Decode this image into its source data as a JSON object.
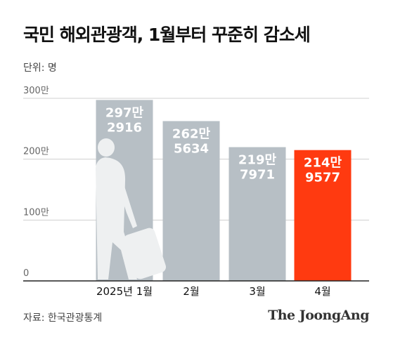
{
  "title": "국민 해외관광객, 1월부터 꾸준히 감소세",
  "unit_label": "단위: 명",
  "source": "자료: 한국관광통계",
  "logo": "The JoongAng",
  "colors": {
    "bar_default": "#b7bfc5",
    "bar_highlight": "#ff3a10",
    "grid": "#cfcfcf",
    "axis": "#222222",
    "silhouette": "#eef0f1"
  },
  "chart_data": {
    "type": "bar",
    "categories": [
      "2025년 1월",
      "2월",
      "3월",
      "4월"
    ],
    "values": [
      2972916,
      2625634,
      2197971,
      2149577
    ],
    "value_labels": [
      [
        "297만",
        "2916"
      ],
      [
        "262만",
        "5634"
      ],
      [
        "219만",
        "7971"
      ],
      [
        "214만",
        "9577"
      ]
    ],
    "highlight_index": 3,
    "yticks": [
      {
        "value": 0,
        "label": "0"
      },
      {
        "value": 1000000,
        "label": "100만"
      },
      {
        "value": 2000000,
        "label": "200만"
      },
      {
        "value": 3000000,
        "label": "300만"
      }
    ],
    "ylim": [
      0,
      3000000
    ],
    "xlabel": "",
    "ylabel": "",
    "grid": true
  }
}
